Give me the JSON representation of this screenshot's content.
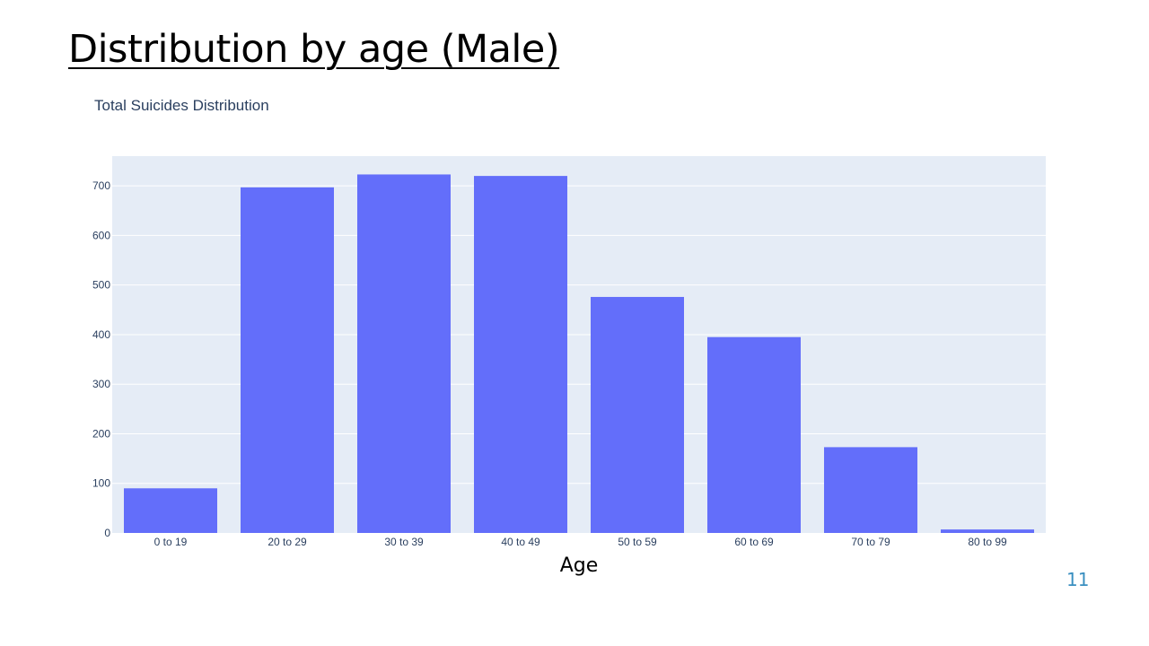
{
  "slide": {
    "title": "Distribution by age (Male)",
    "page_number": "11"
  },
  "chart_data": {
    "type": "bar",
    "title": "Total Suicides Distribution",
    "xlabel": "Age",
    "ylabel": "",
    "categories": [
      "0 to 19",
      "20 to 29",
      "30 to 39",
      "40 to 49",
      "50 to 59",
      "60 to 69",
      "70 to 79",
      "80 to 99"
    ],
    "values": [
      90,
      697,
      723,
      720,
      476,
      395,
      173,
      7
    ],
    "ylim": [
      0,
      760
    ],
    "yticks": [
      0,
      100,
      200,
      300,
      400,
      500,
      600,
      700
    ],
    "grid": true,
    "bar_color": "#636efa",
    "plot_bg": "#e5ecf6"
  }
}
